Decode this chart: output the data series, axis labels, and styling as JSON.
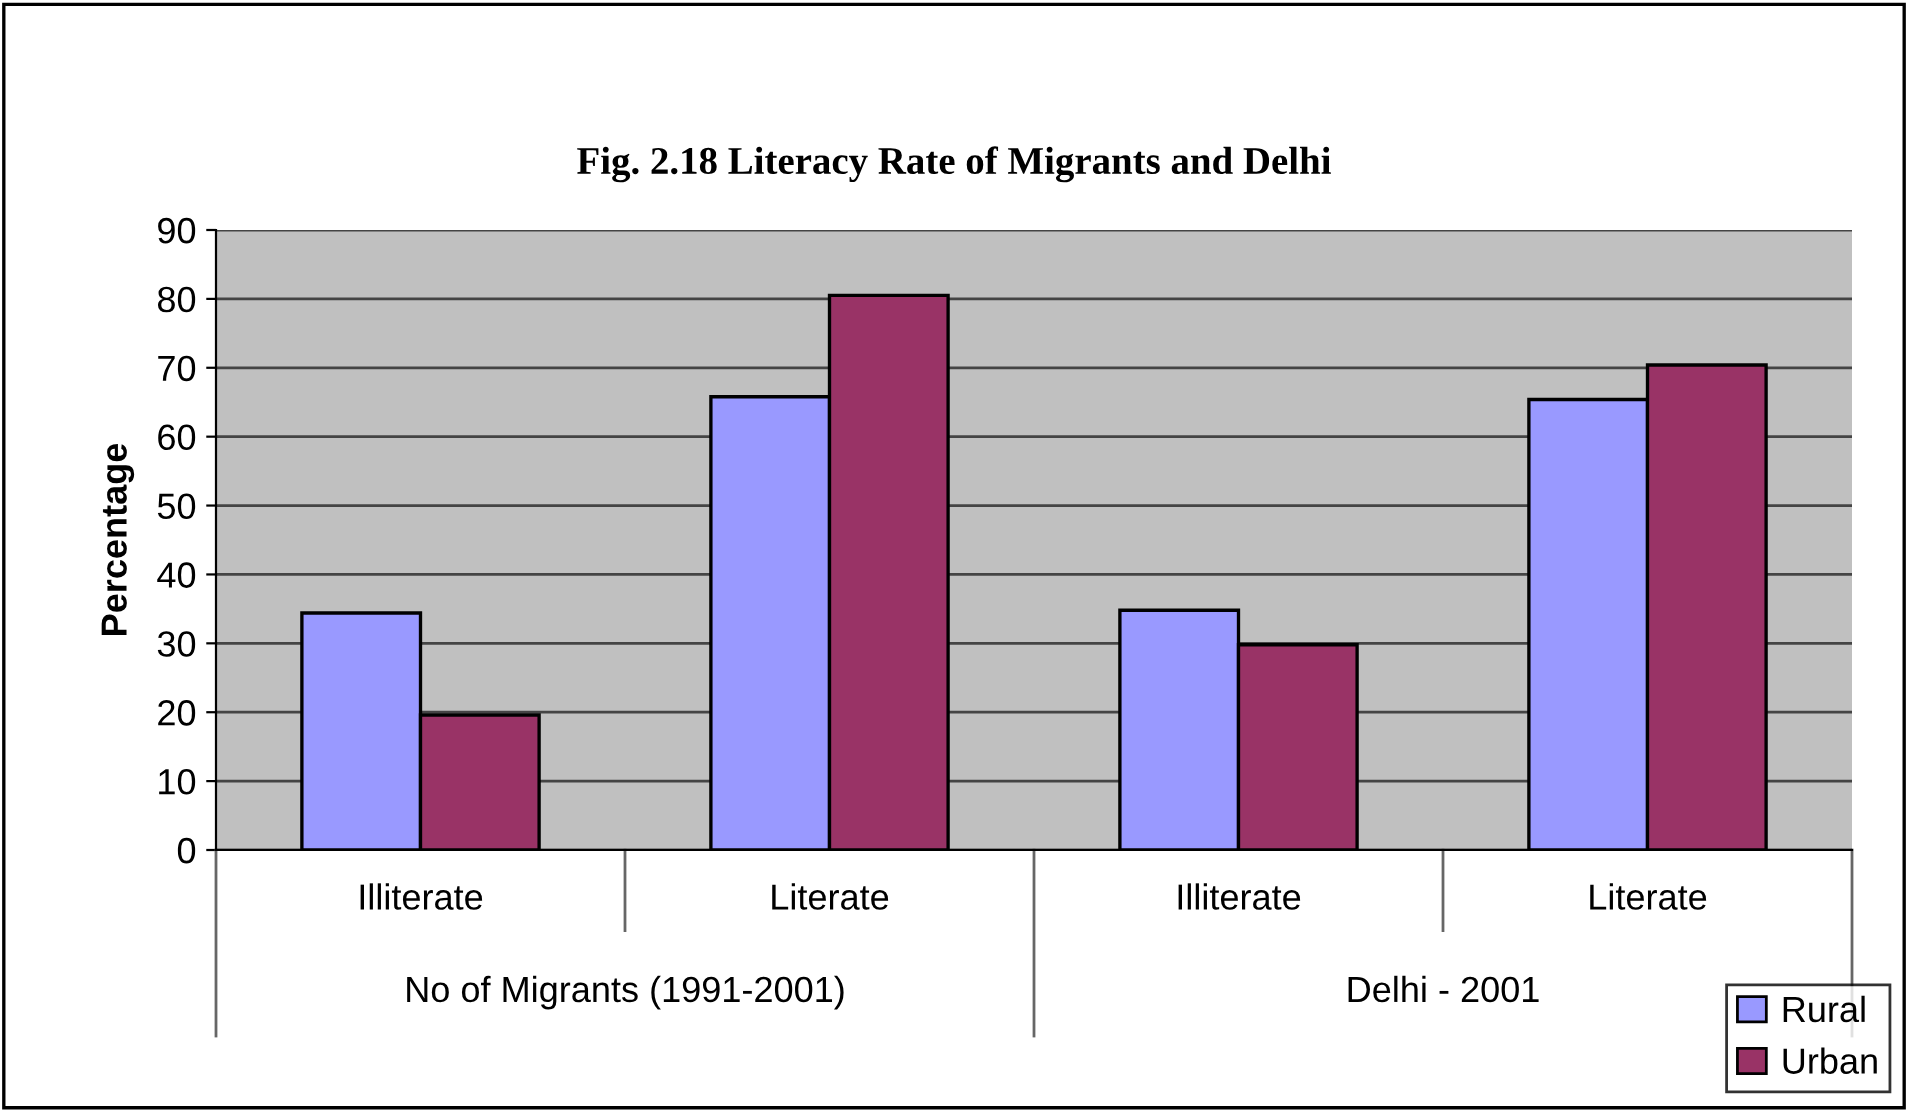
{
  "chart_data": {
    "type": "bar",
    "title": "Fig. 2.18 Literacy Rate of Migrants and Delhi",
    "ylabel": "Percentage",
    "categories": [
      "Illiterate",
      "Literate",
      "Illiterate",
      "Literate"
    ],
    "annotations": [
      "No of Migrants (1991-2001)",
      "Delhi - 2001"
    ],
    "series": [
      {
        "name": "Rural",
        "color": "#9999ff",
        "values": [
          34.4,
          65.8,
          34.8,
          65.4
        ]
      },
      {
        "name": "Urban",
        "color": "#993366",
        "values": [
          19.6,
          80.5,
          29.8,
          70.4
        ]
      }
    ],
    "ylim": [
      0,
      90
    ],
    "yticks": [
      0,
      10,
      20,
      30,
      40,
      50,
      60,
      70,
      80,
      90
    ],
    "grid": "y",
    "legend": "bottom right"
  }
}
